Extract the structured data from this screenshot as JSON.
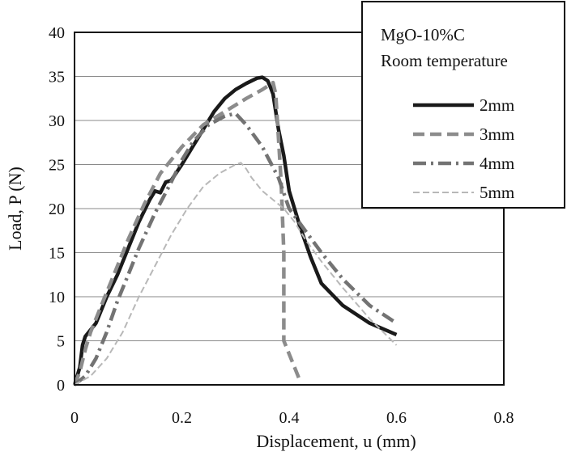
{
  "chart_data": {
    "type": "line",
    "title": "MgO-10%C",
    "subtitle": "Room temperature",
    "xlabel": "Displacement, u  (mm)",
    "ylabel": "Load, P (N)",
    "xlim": [
      0,
      0.8
    ],
    "ylim": [
      0,
      40
    ],
    "xticks": [
      0,
      0.2,
      0.4,
      0.6,
      0.8
    ],
    "yticks": [
      0,
      5,
      10,
      15,
      20,
      25,
      30,
      35,
      40
    ],
    "xtick_labels": [
      "0",
      "0.2",
      "0.4",
      "0.6",
      "0.8"
    ],
    "ytick_labels": [
      "0",
      "5",
      "10",
      "15",
      "20",
      "25",
      "30",
      "35",
      "40"
    ],
    "grid": "horizontal",
    "legend_position": "top-right",
    "series": [
      {
        "name": "2mm",
        "color": "#1a1a1a",
        "style": "solid",
        "points": [
          [
            0,
            0
          ],
          [
            0.01,
            2
          ],
          [
            0.015,
            4.5
          ],
          [
            0.02,
            5.5
          ],
          [
            0.04,
            7
          ],
          [
            0.06,
            10
          ],
          [
            0.08,
            12.5
          ],
          [
            0.1,
            15.5
          ],
          [
            0.12,
            18.5
          ],
          [
            0.14,
            21
          ],
          [
            0.15,
            22
          ],
          [
            0.16,
            21.8
          ],
          [
            0.17,
            23
          ],
          [
            0.18,
            23.2
          ],
          [
            0.2,
            25
          ],
          [
            0.22,
            27
          ],
          [
            0.24,
            29
          ],
          [
            0.26,
            31
          ],
          [
            0.28,
            32.5
          ],
          [
            0.3,
            33.5
          ],
          [
            0.32,
            34.2
          ],
          [
            0.34,
            34.8
          ],
          [
            0.35,
            34.9
          ],
          [
            0.36,
            34.5
          ],
          [
            0.365,
            33.8
          ],
          [
            0.37,
            33
          ],
          [
            0.38,
            29
          ],
          [
            0.39,
            26
          ],
          [
            0.4,
            22
          ],
          [
            0.42,
            18
          ],
          [
            0.44,
            14.5
          ],
          [
            0.46,
            11.5
          ],
          [
            0.5,
            9
          ],
          [
            0.55,
            7
          ],
          [
            0.6,
            5.7
          ]
        ]
      },
      {
        "name": "3mm",
        "color": "#8c8c8c",
        "style": "dashed",
        "points": [
          [
            0,
            0
          ],
          [
            0.01,
            1.5
          ],
          [
            0.02,
            4
          ],
          [
            0.03,
            6
          ],
          [
            0.05,
            9
          ],
          [
            0.07,
            12
          ],
          [
            0.1,
            16.5
          ],
          [
            0.13,
            20.5
          ],
          [
            0.16,
            24
          ],
          [
            0.2,
            27
          ],
          [
            0.24,
            29.5
          ],
          [
            0.28,
            31
          ],
          [
            0.32,
            32.5
          ],
          [
            0.35,
            33.5
          ],
          [
            0.37,
            34.3
          ],
          [
            0.375,
            33
          ],
          [
            0.38,
            28
          ],
          [
            0.385,
            23
          ],
          [
            0.39,
            15
          ],
          [
            0.39,
            5
          ],
          [
            0.4,
            3.5
          ],
          [
            0.41,
            2
          ],
          [
            0.42,
            0.5
          ]
        ]
      },
      {
        "name": "4mm",
        "color": "#737373",
        "style": "dashdot",
        "points": [
          [
            0,
            0
          ],
          [
            0.02,
            1
          ],
          [
            0.04,
            3
          ],
          [
            0.06,
            6
          ],
          [
            0.08,
            9.5
          ],
          [
            0.1,
            12.5
          ],
          [
            0.12,
            15.5
          ],
          [
            0.15,
            19.5
          ],
          [
            0.18,
            23
          ],
          [
            0.2,
            25.5
          ],
          [
            0.22,
            27.5
          ],
          [
            0.25,
            29.5
          ],
          [
            0.28,
            30.5
          ],
          [
            0.3,
            30.8
          ],
          [
            0.32,
            29.5
          ],
          [
            0.35,
            27
          ],
          [
            0.38,
            23.5
          ],
          [
            0.4,
            20
          ],
          [
            0.43,
            17.5
          ],
          [
            0.46,
            15
          ],
          [
            0.5,
            12
          ],
          [
            0.55,
            9
          ],
          [
            0.6,
            7
          ]
        ]
      },
      {
        "name": "5mm",
        "color": "#b8b8b8",
        "style": "dashed-fine",
        "points": [
          [
            0,
            0
          ],
          [
            0.03,
            1
          ],
          [
            0.06,
            3
          ],
          [
            0.09,
            6
          ],
          [
            0.12,
            10
          ],
          [
            0.15,
            13.5
          ],
          [
            0.18,
            17
          ],
          [
            0.21,
            20
          ],
          [
            0.24,
            22.5
          ],
          [
            0.27,
            24
          ],
          [
            0.3,
            25
          ],
          [
            0.31,
            25.2
          ],
          [
            0.32,
            24.5
          ],
          [
            0.33,
            23.5
          ],
          [
            0.35,
            22
          ],
          [
            0.37,
            21
          ],
          [
            0.39,
            20
          ],
          [
            0.41,
            18.5
          ],
          [
            0.43,
            16.5
          ],
          [
            0.46,
            14
          ],
          [
            0.5,
            11
          ],
          [
            0.55,
            7.5
          ],
          [
            0.6,
            4.5
          ]
        ]
      }
    ]
  }
}
